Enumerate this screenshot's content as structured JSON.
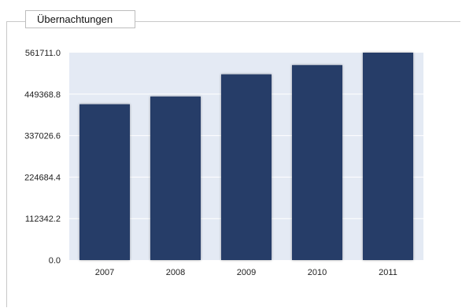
{
  "panel": {
    "tab_label": "Übernachtungen"
  },
  "chart_data": {
    "type": "bar",
    "title": "",
    "xlabel": "",
    "ylabel": "",
    "categories": [
      "2007",
      "2008",
      "2009",
      "2010",
      "2011"
    ],
    "values": [
      422000,
      443000,
      503000,
      528000,
      561711
    ],
    "yticks": [
      "0.0",
      "112342.2",
      "224684.4",
      "337026.6",
      "449368.8",
      "561711.0"
    ],
    "ylim": [
      0,
      561711.0
    ],
    "grid": true,
    "colors": {
      "bar": "#263e67",
      "plot_background": "#e4eaf4",
      "gridline": "#ffffff"
    }
  }
}
